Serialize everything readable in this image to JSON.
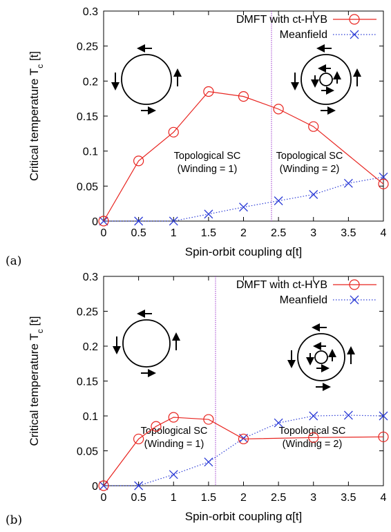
{
  "chart_data": [
    {
      "type": "line",
      "panel_label": "(a)",
      "xlabel": "Spin-orbit coupling α[t]",
      "ylabel": "Critical temperature T",
      "ylabel_sub": "c",
      "ylabel_suffix": " [t]",
      "xlim": [
        0,
        4
      ],
      "ylim": [
        0,
        0.3
      ],
      "x_ticks": [
        "0",
        "0.5",
        "1",
        "1.5",
        "2",
        "2.5",
        "3",
        "3.5",
        "4"
      ],
      "y_ticks": [
        "0",
        "0.05",
        "0.1",
        "0.15",
        "0.2",
        "0.25",
        "0.3"
      ],
      "legend": "top-right",
      "boundary_x": 2.4,
      "region_labels": [
        {
          "line1": "Topological SC",
          "line2": "(Winding = 1)"
        },
        {
          "line1": "Topological SC",
          "line2": "(Winding = 2)"
        }
      ],
      "series": [
        {
          "name": "DMFT with ct-HYB",
          "color": "#e8231e",
          "marker": "circle",
          "x": [
            0,
            0.5,
            1,
            1.5,
            2,
            2.5,
            3,
            4
          ],
          "y": [
            0,
            0.086,
            0.127,
            0.185,
            0.178,
            0.16,
            0.135,
            0.053
          ]
        },
        {
          "name": "Meanfield",
          "color": "#2b3bd6",
          "marker": "x",
          "x": [
            0,
            0.5,
            1,
            1.5,
            2,
            2.5,
            3,
            3.5,
            4
          ],
          "y": [
            0,
            0,
            0,
            0.01,
            0.02,
            0.029,
            0.038,
            0.054,
            0.063
          ]
        }
      ]
    },
    {
      "type": "line",
      "panel_label": "(b)",
      "xlabel": "Spin-orbit coupling α[t]",
      "ylabel": "Critical temperature T",
      "ylabel_sub": "c",
      "ylabel_suffix": " [t]",
      "xlim": [
        0,
        4
      ],
      "ylim": [
        0,
        0.3
      ],
      "x_ticks": [
        "0",
        "0.5",
        "1",
        "1.5",
        "2",
        "2.5",
        "3",
        "3.5",
        "4"
      ],
      "y_ticks": [
        "0",
        "0.05",
        "0.1",
        "0.15",
        "0.2",
        "0.25",
        "0.3"
      ],
      "legend": "top-right",
      "boundary_x": 1.6,
      "region_labels": [
        {
          "line1": "Topological SC",
          "line2": "(Winding = 1)"
        },
        {
          "line1": "Topological SC",
          "line2": "(Winding = 2)"
        }
      ],
      "series": [
        {
          "name": "DMFT with ct-HYB",
          "color": "#e8231e",
          "marker": "circle",
          "x": [
            0,
            0.5,
            0.75,
            1,
            1.5,
            2,
            3,
            4
          ],
          "y": [
            0,
            0.067,
            0.085,
            0.098,
            0.095,
            0.067,
            0.069,
            0.07
          ]
        },
        {
          "name": "Meanfield",
          "color": "#2b3bd6",
          "marker": "x",
          "x": [
            0,
            0.5,
            1,
            1.5,
            2,
            2.5,
            3,
            3.5,
            4
          ],
          "y": [
            0,
            0,
            0.016,
            0.034,
            0.068,
            0.09,
            0.1,
            0.101,
            0.1
          ]
        }
      ]
    }
  ]
}
